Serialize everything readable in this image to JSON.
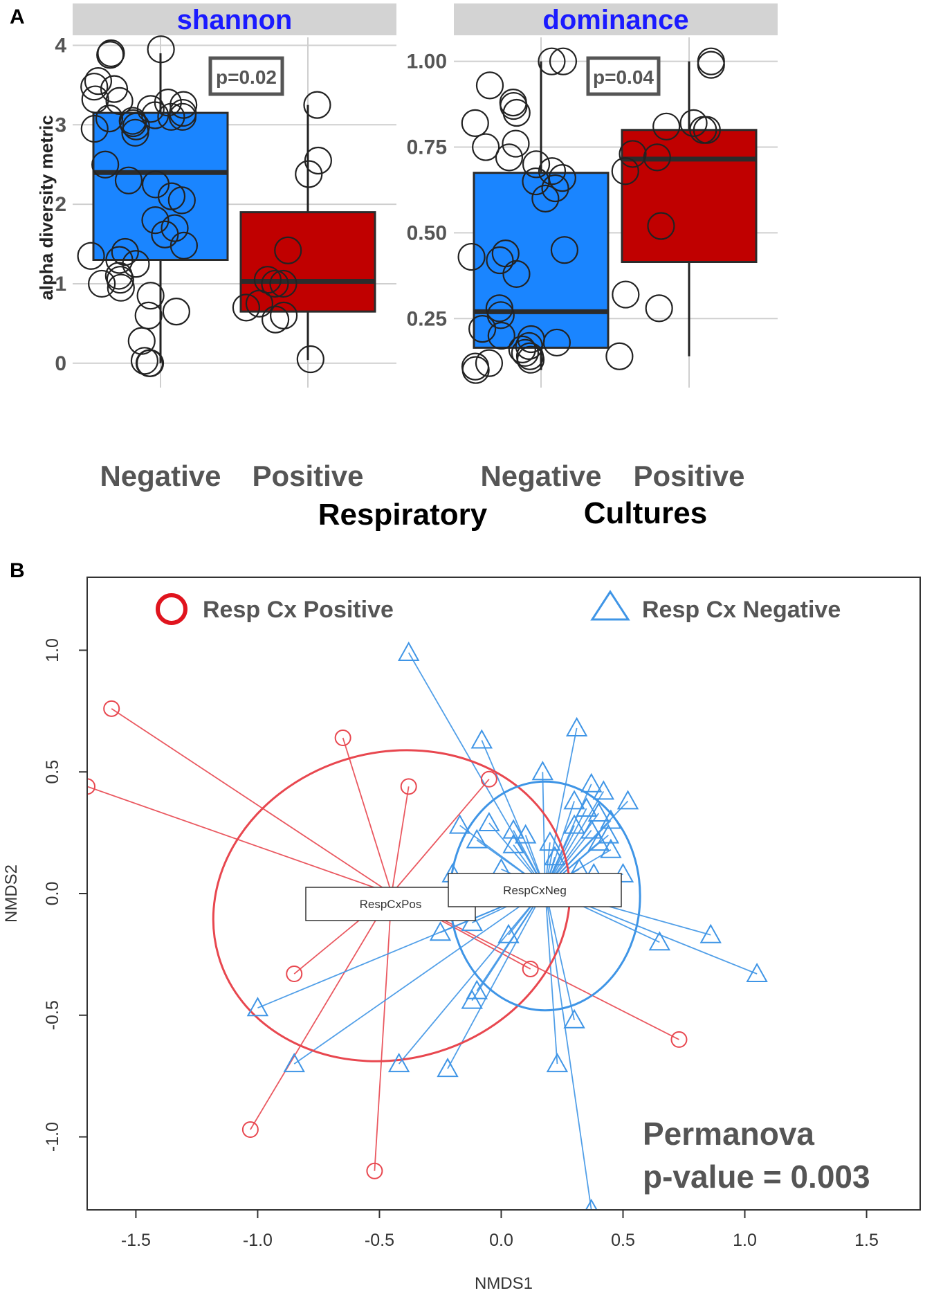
{
  "panel_a": {
    "letter": "A",
    "y_axis_label": "alpha diversity metric",
    "x_group_labels": [
      "Respiratory",
      "Cultures"
    ]
  },
  "panel_b": {
    "letter": "B"
  },
  "colors": {
    "negative_fill": "#1a85ff",
    "positive_fill": "#c00000",
    "red_line": "#e8474f",
    "blue_line": "#3f95e6",
    "strip": "#d3d3d3",
    "strip_text": "#1a1aff",
    "point_stroke": "#222222"
  },
  "chart_data": [
    {
      "type": "box",
      "title": "shannon",
      "ylabel": "alpha diversity metric",
      "ylim": [
        -0.15,
        4.1
      ],
      "yticks": [
        0,
        1,
        2,
        3,
        4
      ],
      "ytick_labels": [
        "0",
        "1",
        "2",
        "3",
        "4"
      ],
      "categories": [
        "Negative",
        "Positive"
      ],
      "annotation": "p=0.02",
      "boxes": [
        {
          "category": "Negative",
          "q1": 1.3,
          "median": 2.4,
          "q3": 3.15,
          "whisker_low": 0.0,
          "whisker_high": 3.9
        },
        {
          "category": "Positive",
          "q1": 0.65,
          "median": 1.03,
          "q3": 1.9,
          "whisker_low": 0.04,
          "whisker_high": 3.25
        }
      ],
      "points": {
        "Negative": [
          3.95,
          3.9,
          3.88,
          3.55,
          3.48,
          3.45,
          3.32,
          3.3,
          3.28,
          3.25,
          3.2,
          3.15,
          3.12,
          3.1,
          3.1,
          3.08,
          3.05,
          3.02,
          2.98,
          2.95,
          2.9,
          2.5,
          2.3,
          2.25,
          2.1,
          2.05,
          1.8,
          1.7,
          1.62,
          1.48,
          1.4,
          1.35,
          1.3,
          1.25,
          1.1,
          1.05,
          1.0,
          0.95,
          0.85,
          0.65,
          0.6,
          0.28,
          0.03,
          0.0,
          0.0
        ],
        "Positive": [
          3.25,
          2.55,
          2.38,
          1.42,
          1.05,
          1.0,
          1.0,
          0.75,
          0.7,
          0.6,
          0.55,
          0.05
        ]
      }
    },
    {
      "type": "box",
      "title": "dominance",
      "ylim": [
        0.085,
        1.07
      ],
      "yticks": [
        0.25,
        0.5,
        0.75,
        1.0
      ],
      "ytick_labels": [
        "0.25",
        "0.50",
        "0.75",
        "1.00"
      ],
      "categories": [
        "Negative",
        "Positive"
      ],
      "annotation": "p=0.04",
      "boxes": [
        {
          "category": "Negative",
          "q1": 0.165,
          "median": 0.27,
          "q3": 0.675,
          "whisker_low": 0.1,
          "whisker_high": 1.0
        },
        {
          "category": "Positive",
          "q1": 0.415,
          "median": 0.715,
          "q3": 0.8,
          "whisker_low": 0.14,
          "whisker_high": 1.0
        }
      ],
      "points": {
        "Negative": [
          1.0,
          1.0,
          0.93,
          0.88,
          0.87,
          0.85,
          0.82,
          0.76,
          0.75,
          0.72,
          0.7,
          0.68,
          0.66,
          0.65,
          0.63,
          0.6,
          0.45,
          0.44,
          0.43,
          0.42,
          0.38,
          0.28,
          0.26,
          0.22,
          0.2,
          0.19,
          0.18,
          0.17,
          0.16,
          0.15,
          0.14,
          0.13,
          0.12,
          0.11,
          0.1
        ],
        "Positive": [
          1.0,
          0.99,
          0.82,
          0.81,
          0.8,
          0.8,
          0.73,
          0.72,
          0.68,
          0.52,
          0.32,
          0.28,
          0.14
        ]
      }
    },
    {
      "type": "scatter",
      "subtype": "ordination-spider",
      "xlabel": "NMDS1",
      "ylabel": "NMDS2",
      "xlim": [
        -1.7,
        1.72
      ],
      "ylim": [
        -1.3,
        1.3
      ],
      "xticks": [
        -1.5,
        -1.0,
        -0.5,
        0.0,
        0.5,
        1.0,
        1.5
      ],
      "xtick_labels": [
        "-1.5",
        "-1.0",
        "-0.5",
        "0.0",
        "0.5",
        "1.0",
        "1.5"
      ],
      "yticks": [
        -1.0,
        -0.5,
        0.0,
        0.5,
        1.0
      ],
      "ytick_labels": [
        "-1.0",
        "-0.5",
        "0.0",
        "0.5",
        "1.0"
      ],
      "legend": {
        "position": "top",
        "entries": [
          "Resp Cx Positive",
          "Resp Cx Negative"
        ]
      },
      "annotation": [
        "Permanova",
        "p-value = 0.003"
      ],
      "series": [
        {
          "name": "Resp Cx Positive",
          "marker": "circle",
          "centroid_label": "RespCxPos",
          "centroid": [
            -0.45,
            0.0
          ],
          "ellipse": {
            "cx": -0.45,
            "cy": -0.05,
            "rx": 0.74,
            "ry": 0.63,
            "angle_deg": -16
          },
          "points": [
            [
              -1.6,
              0.76
            ],
            [
              -1.7,
              0.44
            ],
            [
              -0.65,
              0.64
            ],
            [
              -0.38,
              0.44
            ],
            [
              -0.05,
              0.47
            ],
            [
              -0.85,
              -0.33
            ],
            [
              0.12,
              -0.31
            ],
            [
              0.73,
              -0.6
            ],
            [
              -1.03,
              -0.97
            ],
            [
              -0.52,
              -1.14
            ]
          ]
        },
        {
          "name": "Resp Cx Negative",
          "marker": "triangle",
          "centroid_label": "RespCxNeg",
          "centroid": [
            0.18,
            0.02
          ],
          "ellipse": {
            "cx": 0.18,
            "cy": -0.01,
            "rx": 0.39,
            "ry": 0.47,
            "angle_deg": 0
          },
          "points": [
            [
              -0.38,
              0.99
            ],
            [
              -0.08,
              0.63
            ],
            [
              0.31,
              0.68
            ],
            [
              0.17,
              0.5
            ],
            [
              0.37,
              0.45
            ],
            [
              0.42,
              0.42
            ],
            [
              0.52,
              0.38
            ],
            [
              0.35,
              0.35
            ],
            [
              0.4,
              0.33
            ],
            [
              0.3,
              0.38
            ],
            [
              0.45,
              0.3
            ],
            [
              0.37,
              0.26
            ],
            [
              0.44,
              0.24
            ],
            [
              0.3,
              0.28
            ],
            [
              -0.17,
              0.28
            ],
            [
              -0.05,
              0.29
            ],
            [
              0.05,
              0.26
            ],
            [
              0.1,
              0.24
            ],
            [
              0.2,
              0.21
            ],
            [
              0.4,
              0.21
            ],
            [
              0.45,
              0.18
            ],
            [
              -0.1,
              0.22
            ],
            [
              0.05,
              0.2
            ],
            [
              0.22,
              0.15
            ],
            [
              0.32,
              0.1
            ],
            [
              -0.2,
              0.08
            ],
            [
              0.0,
              0.1
            ],
            [
              0.38,
              0.08
            ],
            [
              0.5,
              0.08
            ],
            [
              -0.12,
              -0.12
            ],
            [
              0.03,
              -0.17
            ],
            [
              -0.25,
              -0.16
            ],
            [
              0.65,
              -0.2
            ],
            [
              0.86,
              -0.17
            ],
            [
              1.05,
              -0.33
            ],
            [
              -0.1,
              -0.4
            ],
            [
              -0.12,
              -0.44
            ],
            [
              0.3,
              -0.52
            ],
            [
              -1.0,
              -0.47
            ],
            [
              -0.85,
              -0.7
            ],
            [
              -0.42,
              -0.7
            ],
            [
              -0.22,
              -0.72
            ],
            [
              0.23,
              -0.7
            ],
            [
              0.37,
              -1.3
            ]
          ]
        }
      ]
    }
  ]
}
